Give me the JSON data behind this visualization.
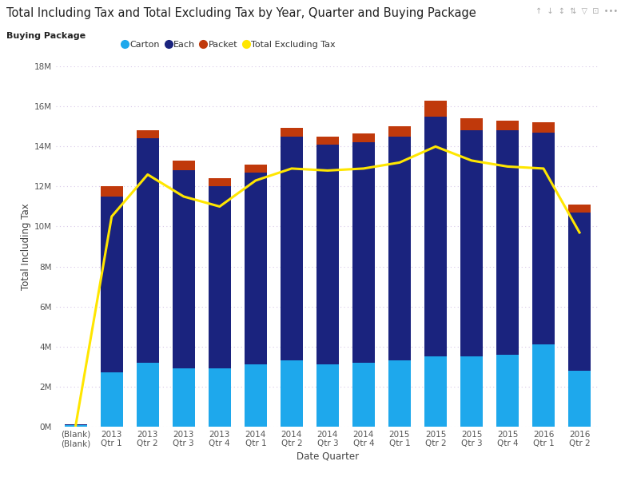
{
  "title": "Total Including Tax and Total Excluding Tax by Year, Quarter and Buying Package",
  "xlabel": "Date Quarter",
  "ylabel": "Total Including Tax",
  "legend_label": "Buying Package",
  "categories": [
    "(Blank)\n(Blank)",
    "2013\nQtr 1",
    "2013\nQtr 2",
    "2013\nQtr 3",
    "2013\nQtr 4",
    "2014\nQtr 1",
    "2014\nQtr 2",
    "2014\nQtr 3",
    "2014\nQtr 4",
    "2015\nQtr 1",
    "2015\nQtr 2",
    "2015\nQtr 3",
    "2015\nQtr 4",
    "2016\nQtr 1",
    "2016\nQtr 2"
  ],
  "carton": [
    0.05,
    2.7,
    3.2,
    2.9,
    2.9,
    3.1,
    3.3,
    3.1,
    3.2,
    3.3,
    3.5,
    3.5,
    3.6,
    4.1,
    2.8
  ],
  "each": [
    0.05,
    8.8,
    11.2,
    9.9,
    9.1,
    9.6,
    11.2,
    11.0,
    11.0,
    11.2,
    12.0,
    11.3,
    11.2,
    10.6,
    7.9
  ],
  "packet": [
    0.0,
    0.5,
    0.4,
    0.5,
    0.4,
    0.4,
    0.45,
    0.4,
    0.45,
    0.5,
    0.8,
    0.6,
    0.5,
    0.5,
    0.4
  ],
  "line_values": [
    0.05,
    10.5,
    12.6,
    11.5,
    11.0,
    12.3,
    12.9,
    12.8,
    12.9,
    13.2,
    14.0,
    13.3,
    13.0,
    12.9,
    9.7
  ],
  "color_carton": "#1EA8EC",
  "color_each": "#1A237E",
  "color_packet": "#C0390B",
  "color_line": "#FFE600",
  "background_color": "#FFFFFF",
  "grid_color": "#D8C8E8",
  "ylim": [
    0,
    18
  ],
  "yticks": [
    0,
    2,
    4,
    6,
    8,
    10,
    12,
    14,
    16,
    18
  ],
  "ytick_labels": [
    "0M",
    "2M",
    "4M",
    "6M",
    "8M",
    "10M",
    "12M",
    "14M",
    "16M",
    "18M"
  ],
  "title_fontsize": 10.5,
  "axis_label_fontsize": 8.5,
  "tick_fontsize": 7.5,
  "legend_fontsize": 8,
  "line_width": 2.2,
  "series_labels": [
    "Carton",
    "Each",
    "Packet",
    "Total Excluding Tax"
  ],
  "top_icons": "↑  ↓  ↓↑  ↕  ▽  □  •••"
}
